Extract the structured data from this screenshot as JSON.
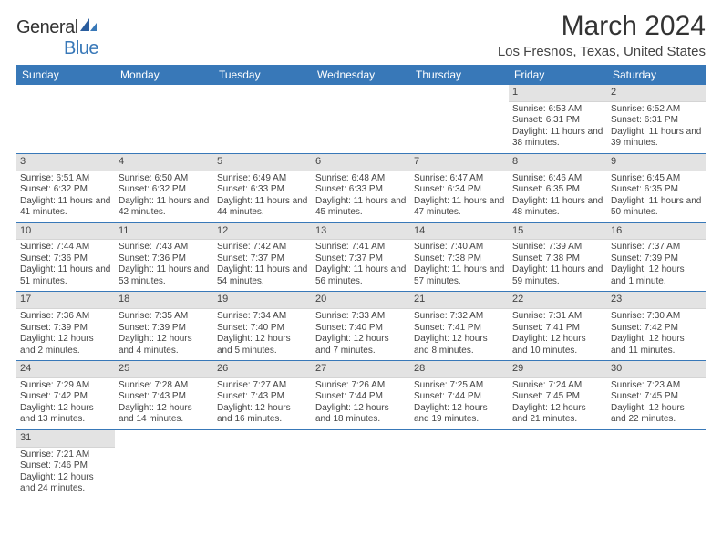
{
  "logo": {
    "text1": "General",
    "text2": "Blue"
  },
  "title": "March 2024",
  "location": "Los Fresnos, Texas, United States",
  "weekdays": [
    "Sunday",
    "Monday",
    "Tuesday",
    "Wednesday",
    "Thursday",
    "Friday",
    "Saturday"
  ],
  "colors": {
    "header_bg": "#3878b8",
    "daynum_bg": "#e3e3e3",
    "rule": "#3878b8"
  },
  "weeks": [
    [
      {
        "n": "",
        "lines": []
      },
      {
        "n": "",
        "lines": []
      },
      {
        "n": "",
        "lines": []
      },
      {
        "n": "",
        "lines": []
      },
      {
        "n": "",
        "lines": []
      },
      {
        "n": "1",
        "lines": [
          "Sunrise: 6:53 AM",
          "Sunset: 6:31 PM",
          "Daylight: 11 hours and 38 minutes."
        ]
      },
      {
        "n": "2",
        "lines": [
          "Sunrise: 6:52 AM",
          "Sunset: 6:31 PM",
          "Daylight: 11 hours and 39 minutes."
        ]
      }
    ],
    [
      {
        "n": "3",
        "lines": [
          "Sunrise: 6:51 AM",
          "Sunset: 6:32 PM",
          "Daylight: 11 hours and 41 minutes."
        ]
      },
      {
        "n": "4",
        "lines": [
          "Sunrise: 6:50 AM",
          "Sunset: 6:32 PM",
          "Daylight: 11 hours and 42 minutes."
        ]
      },
      {
        "n": "5",
        "lines": [
          "Sunrise: 6:49 AM",
          "Sunset: 6:33 PM",
          "Daylight: 11 hours and 44 minutes."
        ]
      },
      {
        "n": "6",
        "lines": [
          "Sunrise: 6:48 AM",
          "Sunset: 6:33 PM",
          "Daylight: 11 hours and 45 minutes."
        ]
      },
      {
        "n": "7",
        "lines": [
          "Sunrise: 6:47 AM",
          "Sunset: 6:34 PM",
          "Daylight: 11 hours and 47 minutes."
        ]
      },
      {
        "n": "8",
        "lines": [
          "Sunrise: 6:46 AM",
          "Sunset: 6:35 PM",
          "Daylight: 11 hours and 48 minutes."
        ]
      },
      {
        "n": "9",
        "lines": [
          "Sunrise: 6:45 AM",
          "Sunset: 6:35 PM",
          "Daylight: 11 hours and 50 minutes."
        ]
      }
    ],
    [
      {
        "n": "10",
        "lines": [
          "Sunrise: 7:44 AM",
          "Sunset: 7:36 PM",
          "Daylight: 11 hours and 51 minutes."
        ]
      },
      {
        "n": "11",
        "lines": [
          "Sunrise: 7:43 AM",
          "Sunset: 7:36 PM",
          "Daylight: 11 hours and 53 minutes."
        ]
      },
      {
        "n": "12",
        "lines": [
          "Sunrise: 7:42 AM",
          "Sunset: 7:37 PM",
          "Daylight: 11 hours and 54 minutes."
        ]
      },
      {
        "n": "13",
        "lines": [
          "Sunrise: 7:41 AM",
          "Sunset: 7:37 PM",
          "Daylight: 11 hours and 56 minutes."
        ]
      },
      {
        "n": "14",
        "lines": [
          "Sunrise: 7:40 AM",
          "Sunset: 7:38 PM",
          "Daylight: 11 hours and 57 minutes."
        ]
      },
      {
        "n": "15",
        "lines": [
          "Sunrise: 7:39 AM",
          "Sunset: 7:38 PM",
          "Daylight: 11 hours and 59 minutes."
        ]
      },
      {
        "n": "16",
        "lines": [
          "Sunrise: 7:37 AM",
          "Sunset: 7:39 PM",
          "Daylight: 12 hours and 1 minute."
        ]
      }
    ],
    [
      {
        "n": "17",
        "lines": [
          "Sunrise: 7:36 AM",
          "Sunset: 7:39 PM",
          "Daylight: 12 hours and 2 minutes."
        ]
      },
      {
        "n": "18",
        "lines": [
          "Sunrise: 7:35 AM",
          "Sunset: 7:39 PM",
          "Daylight: 12 hours and 4 minutes."
        ]
      },
      {
        "n": "19",
        "lines": [
          "Sunrise: 7:34 AM",
          "Sunset: 7:40 PM",
          "Daylight: 12 hours and 5 minutes."
        ]
      },
      {
        "n": "20",
        "lines": [
          "Sunrise: 7:33 AM",
          "Sunset: 7:40 PM",
          "Daylight: 12 hours and 7 minutes."
        ]
      },
      {
        "n": "21",
        "lines": [
          "Sunrise: 7:32 AM",
          "Sunset: 7:41 PM",
          "Daylight: 12 hours and 8 minutes."
        ]
      },
      {
        "n": "22",
        "lines": [
          "Sunrise: 7:31 AM",
          "Sunset: 7:41 PM",
          "Daylight: 12 hours and 10 minutes."
        ]
      },
      {
        "n": "23",
        "lines": [
          "Sunrise: 7:30 AM",
          "Sunset: 7:42 PM",
          "Daylight: 12 hours and 11 minutes."
        ]
      }
    ],
    [
      {
        "n": "24",
        "lines": [
          "Sunrise: 7:29 AM",
          "Sunset: 7:42 PM",
          "Daylight: 12 hours and 13 minutes."
        ]
      },
      {
        "n": "25",
        "lines": [
          "Sunrise: 7:28 AM",
          "Sunset: 7:43 PM",
          "Daylight: 12 hours and 14 minutes."
        ]
      },
      {
        "n": "26",
        "lines": [
          "Sunrise: 7:27 AM",
          "Sunset: 7:43 PM",
          "Daylight: 12 hours and 16 minutes."
        ]
      },
      {
        "n": "27",
        "lines": [
          "Sunrise: 7:26 AM",
          "Sunset: 7:44 PM",
          "Daylight: 12 hours and 18 minutes."
        ]
      },
      {
        "n": "28",
        "lines": [
          "Sunrise: 7:25 AM",
          "Sunset: 7:44 PM",
          "Daylight: 12 hours and 19 minutes."
        ]
      },
      {
        "n": "29",
        "lines": [
          "Sunrise: 7:24 AM",
          "Sunset: 7:45 PM",
          "Daylight: 12 hours and 21 minutes."
        ]
      },
      {
        "n": "30",
        "lines": [
          "Sunrise: 7:23 AM",
          "Sunset: 7:45 PM",
          "Daylight: 12 hours and 22 minutes."
        ]
      }
    ],
    [
      {
        "n": "31",
        "lines": [
          "Sunrise: 7:21 AM",
          "Sunset: 7:46 PM",
          "Daylight: 12 hours and 24 minutes."
        ]
      },
      {
        "n": "",
        "lines": []
      },
      {
        "n": "",
        "lines": []
      },
      {
        "n": "",
        "lines": []
      },
      {
        "n": "",
        "lines": []
      },
      {
        "n": "",
        "lines": []
      },
      {
        "n": "",
        "lines": []
      }
    ]
  ]
}
